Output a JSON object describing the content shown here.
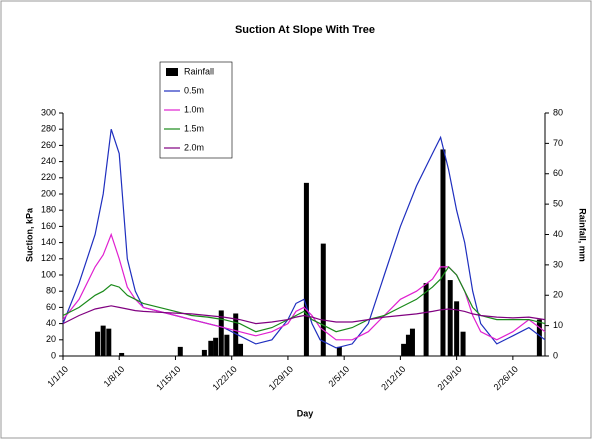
{
  "chart_data": {
    "type": "line",
    "title": "Suction At Slope With Tree",
    "x_label": "Day",
    "y_label": "Suction, kPa",
    "y2_label": "Rainfall, mm",
    "x": [
      0,
      2,
      4,
      5,
      6,
      7,
      8,
      9,
      10,
      12,
      14,
      16,
      18,
      20,
      22,
      24,
      26,
      28,
      29,
      30,
      31,
      32,
      34,
      36,
      38,
      40,
      42,
      44,
      46,
      47,
      48,
      49,
      50,
      51,
      52,
      54,
      56,
      58,
      60
    ],
    "xlim": [
      0,
      60
    ],
    "xticks": [
      {
        "value": 0,
        "label": "1/1/10"
      },
      {
        "value": 7,
        "label": "1/8/10"
      },
      {
        "value": 14,
        "label": "1/15/10"
      },
      {
        "value": 21,
        "label": "1/22/10"
      },
      {
        "value": 28,
        "label": "1/29/10"
      },
      {
        "value": 35,
        "label": "2/5/10"
      },
      {
        "value": 42,
        "label": "2/12/10"
      },
      {
        "value": 49,
        "label": "2/19/10"
      },
      {
        "value": 56,
        "label": "2/26/10"
      }
    ],
    "ylim": [
      0,
      300
    ],
    "yticks": [
      0,
      20,
      40,
      60,
      80,
      100,
      120,
      140,
      160,
      180,
      200,
      220,
      240,
      260,
      280,
      300
    ],
    "y2lim": [
      0,
      80
    ],
    "y2ticks": [
      0,
      10,
      20,
      30,
      40,
      50,
      60,
      70,
      80
    ],
    "legend": "upper-left",
    "series": [
      {
        "name": "Rainfall",
        "color": "#000000",
        "type": "bar",
        "axis": "y2",
        "x": [
          4.3,
          5,
          5.7,
          7.3,
          14.6,
          17.6,
          18.4,
          19,
          19.7,
          20.4,
          21.5,
          22.1,
          30.3,
          32.4,
          34.4,
          42.4,
          43,
          43.5,
          45.2,
          47.3,
          48.2,
          49,
          49.8,
          59.3
        ],
        "values": [
          8,
          10,
          9,
          1,
          3,
          2,
          5,
          6,
          15,
          7,
          14,
          4,
          57,
          37,
          3,
          4,
          7,
          9,
          24,
          68,
          25,
          18,
          8,
          12
        ]
      },
      {
        "name": "0.5m",
        "color": "#1f2fbf",
        "values": [
          40,
          90,
          150,
          200,
          280,
          250,
          120,
          80,
          60,
          55,
          50,
          45,
          40,
          35,
          25,
          15,
          20,
          45,
          65,
          70,
          40,
          20,
          10,
          15,
          40,
          100,
          160,
          210,
          250,
          270,
          230,
          180,
          140,
          80,
          40,
          15,
          25,
          35,
          20
        ]
      },
      {
        "name": "1.0m",
        "color": "#e020d0",
        "values": [
          45,
          70,
          110,
          125,
          150,
          120,
          85,
          70,
          60,
          55,
          50,
          45,
          40,
          35,
          30,
          25,
          30,
          40,
          55,
          60,
          50,
          35,
          20,
          20,
          30,
          50,
          70,
          80,
          95,
          110,
          110,
          100,
          80,
          50,
          30,
          20,
          30,
          45,
          30
        ]
      },
      {
        "name": "1.5m",
        "color": "#1a8a1a",
        "values": [
          50,
          60,
          75,
          80,
          88,
          85,
          75,
          70,
          65,
          60,
          55,
          50,
          48,
          45,
          40,
          30,
          35,
          45,
          50,
          55,
          45,
          40,
          30,
          35,
          45,
          50,
          60,
          70,
          85,
          95,
          110,
          100,
          80,
          60,
          50,
          45,
          45,
          45,
          40
        ]
      },
      {
        "name": "2.0m",
        "color": "#800080",
        "values": [
          40,
          50,
          58,
          60,
          62,
          60,
          58,
          56,
          55,
          54,
          53,
          52,
          50,
          48,
          45,
          40,
          42,
          45,
          48,
          50,
          48,
          45,
          42,
          42,
          45,
          48,
          50,
          52,
          55,
          57,
          58,
          57,
          55,
          52,
          50,
          48,
          47,
          48,
          45
        ]
      }
    ]
  }
}
